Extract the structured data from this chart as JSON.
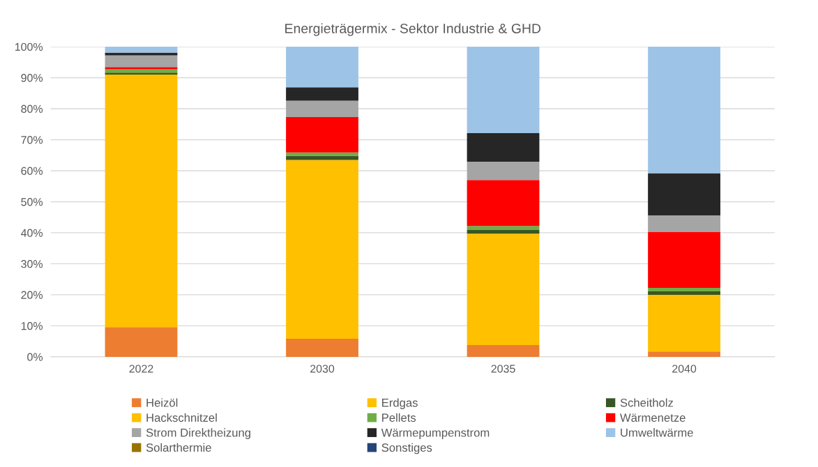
{
  "chart_data": {
    "type": "bar",
    "stacked": true,
    "title": "Energieträgermix - Sektor Industrie & GHD",
    "categories": [
      "2022",
      "2030",
      "2035",
      "2040"
    ],
    "series": [
      {
        "name": "Heizöl",
        "color": "#ed7d31",
        "values": [
          9.6,
          5.8,
          3.8,
          1.7
        ]
      },
      {
        "name": "Erdgas",
        "color": "#ffc000",
        "values": [
          81.4,
          57.7,
          35.9,
          18.3
        ]
      },
      {
        "name": "Scheitholz",
        "color": "#375623",
        "values": [
          0.6,
          1.3,
          1.2,
          1.1
        ]
      },
      {
        "name": "Hackschnitzel",
        "color": "#ffc000",
        "values": [
          0,
          0,
          0,
          0
        ]
      },
      {
        "name": "Pellets",
        "color": "#70ad47",
        "values": [
          1.1,
          1.1,
          1.3,
          1.1
        ]
      },
      {
        "name": "Wärmenetze",
        "color": "#ff0000",
        "values": [
          0.7,
          11.4,
          14.8,
          18.1
        ]
      },
      {
        "name": "Strom Direktheizung",
        "color": "#a5a5a5",
        "values": [
          3.8,
          5.3,
          5.9,
          5.3
        ]
      },
      {
        "name": "Wärmepumpenstrom",
        "color": "#262626",
        "values": [
          0.9,
          4.3,
          9.2,
          13.6
        ]
      },
      {
        "name": "Umweltwärme",
        "color": "#9dc3e6",
        "values": [
          1.9,
          13.1,
          27.9,
          40.8
        ]
      },
      {
        "name": "Solarthermie",
        "color": "#997300",
        "values": [
          0,
          0,
          0,
          0
        ]
      },
      {
        "name": "Sonstiges",
        "color": "#264478",
        "values": [
          0,
          0,
          0,
          0
        ]
      }
    ],
    "ylim": [
      0,
      100
    ],
    "yticks": [
      {
        "value": 0,
        "label": "0%"
      },
      {
        "value": 10,
        "label": "10%"
      },
      {
        "value": 20,
        "label": "20%"
      },
      {
        "value": 30,
        "label": "30%"
      },
      {
        "value": 40,
        "label": "40%"
      },
      {
        "value": 50,
        "label": "50%"
      },
      {
        "value": 60,
        "label": "60%"
      },
      {
        "value": 70,
        "label": "70%"
      },
      {
        "value": 80,
        "label": "80%"
      },
      {
        "value": 90,
        "label": "90%"
      },
      {
        "value": 100,
        "label": "100%"
      }
    ],
    "grid": "y",
    "legend": "bottom"
  }
}
